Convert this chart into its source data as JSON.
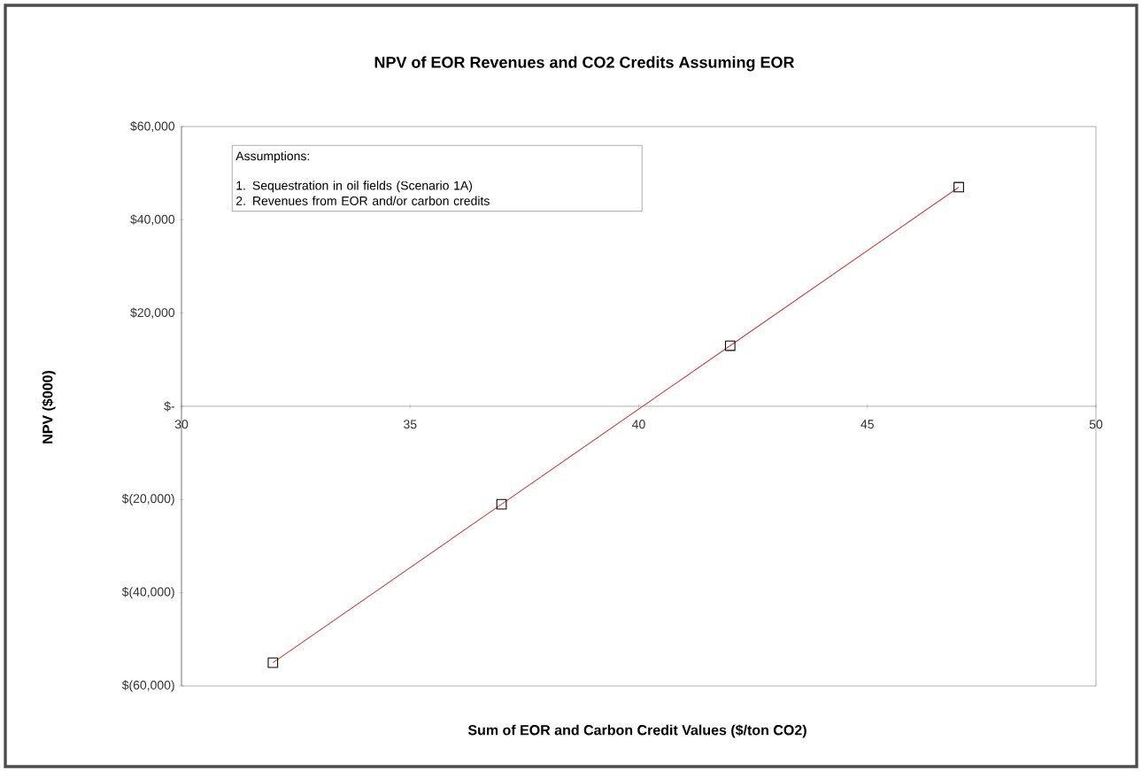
{
  "chart_data": {
    "type": "line",
    "title": "NPV of EOR Revenues and CO2 Credits Assuming EOR",
    "xlabel": "Sum of EOR and Carbon Credit Values ($/ton CO2)",
    "ylabel": "NPV ($000)",
    "x": [
      32,
      37,
      42,
      47
    ],
    "series": [
      {
        "color": "#d03a3a",
        "values": [
          -55000,
          -21000,
          13000,
          47000
        ]
      }
    ],
    "xlim": [
      30,
      50
    ],
    "xticks": [
      30,
      35,
      40,
      45,
      50
    ],
    "ylim": [
      -60000,
      60000
    ],
    "yticks": [
      {
        "value": -60000,
        "label": "$(60,000)"
      },
      {
        "value": -40000,
        "label": "$(40,000)"
      },
      {
        "value": -20000,
        "label": "$(20,000)"
      },
      {
        "value": 0,
        "label": "$-"
      },
      {
        "value": 20000,
        "label": "$20,000"
      },
      {
        "value": 40000,
        "label": "$40,000"
      },
      {
        "value": 60000,
        "label": "$60,000"
      }
    ],
    "marker": "square",
    "line_style": "solid",
    "grid": false,
    "annotations": [
      "Assumptions:",
      "1. Sequestration in oil fields (Scenario 1A)",
      "2. Revenues from EOR and/or carbon credits"
    ]
  }
}
